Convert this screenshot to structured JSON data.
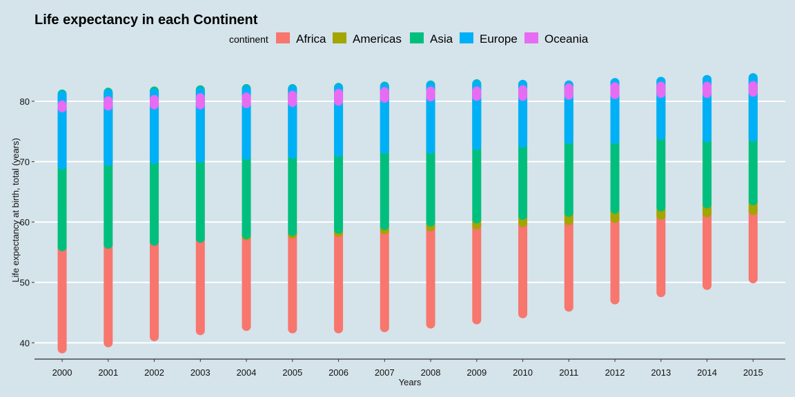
{
  "chart_data": {
    "type": "scatter",
    "title": "Life expectancy in each Continent",
    "xlabel": "Years",
    "ylabel": "Life expectancy at birth, total (years)",
    "xlim": [
      1999.4,
      2015.7
    ],
    "ylim": [
      37.3,
      86.5
    ],
    "x_ticks": [
      2000,
      2001,
      2002,
      2003,
      2004,
      2005,
      2006,
      2007,
      2008,
      2009,
      2010,
      2011,
      2012,
      2013,
      2014,
      2015
    ],
    "y_ticks": [
      40,
      50,
      60,
      70,
      80
    ],
    "grid": "horizontal",
    "legend": {
      "title": "continent",
      "position": "top"
    },
    "series": [
      {
        "name": "Africa",
        "color": "#f8766d",
        "ranges": [
          [
            39.0,
            55.9
          ],
          [
            40.0,
            56.3
          ],
          [
            41.0,
            56.8
          ],
          [
            42.0,
            57.3
          ],
          [
            42.7,
            57.7
          ],
          [
            42.3,
            58.0
          ],
          [
            42.3,
            58.3
          ],
          [
            42.5,
            58.7
          ],
          [
            43.1,
            59.2
          ],
          [
            43.8,
            59.5
          ],
          [
            44.8,
            59.9
          ],
          [
            45.9,
            60.2
          ],
          [
            47.1,
            60.6
          ],
          [
            48.3,
            61.1
          ],
          [
            49.5,
            61.5
          ],
          [
            50.6,
            61.9
          ]
        ]
      },
      {
        "name": "Americas",
        "color": "#a3a500",
        "ranges": [
          [
            null,
            null
          ],
          [
            null,
            null
          ],
          [
            null,
            null
          ],
          [
            null,
            null
          ],
          [
            57.7,
            57.9
          ],
          [
            58.0,
            58.4
          ],
          [
            58.3,
            58.8
          ],
          [
            58.7,
            59.4
          ],
          [
            59.2,
            60.0
          ],
          [
            59.5,
            60.5
          ],
          [
            59.9,
            61.1
          ],
          [
            60.2,
            61.6
          ],
          [
            60.6,
            62.1
          ],
          [
            61.1,
            62.5
          ],
          [
            61.5,
            63.0
          ],
          [
            61.9,
            63.5
          ]
        ]
      },
      {
        "name": "Asia",
        "color": "#00bf7d",
        "ranges": [
          [
            55.9,
            81.2
          ],
          [
            56.3,
            81.5
          ],
          [
            56.8,
            81.7
          ],
          [
            57.3,
            81.9
          ],
          [
            57.9,
            82.1
          ],
          [
            58.4,
            82.1
          ],
          [
            58.8,
            82.3
          ],
          [
            59.4,
            82.5
          ],
          [
            60.0,
            82.7
          ],
          [
            60.5,
            82.9
          ],
          [
            61.1,
            82.8
          ],
          [
            61.6,
            82.7
          ],
          [
            62.1,
            83.1
          ],
          [
            62.5,
            83.3
          ],
          [
            63.0,
            83.6
          ],
          [
            63.5,
            83.9
          ]
        ]
      },
      {
        "name": "Europe",
        "color": "#00b0f6",
        "ranges": [
          [
            69.4,
            81.0
          ],
          [
            70.0,
            81.3
          ],
          [
            70.3,
            81.4
          ],
          [
            70.5,
            81.6
          ],
          [
            71.0,
            81.9
          ],
          [
            71.2,
            82.0
          ],
          [
            71.5,
            82.2
          ],
          [
            72.0,
            82.4
          ],
          [
            72.0,
            82.6
          ],
          [
            72.6,
            82.8
          ],
          [
            73.0,
            82.8
          ],
          [
            73.6,
            82.7
          ],
          [
            73.6,
            83.1
          ],
          [
            74.3,
            83.3
          ],
          [
            73.9,
            83.6
          ],
          [
            74.0,
            83.9
          ]
        ]
      },
      {
        "name": "Oceania",
        "color": "#e76bf3",
        "ranges": [
          [
            78.9,
            79.4
          ],
          [
            79.2,
            80.1
          ],
          [
            79.4,
            80.3
          ],
          [
            79.4,
            80.6
          ],
          [
            79.6,
            80.7
          ],
          [
            79.8,
            81.0
          ],
          [
            80.0,
            81.3
          ],
          [
            80.5,
            81.6
          ],
          [
            80.7,
            81.7
          ],
          [
            80.8,
            81.7
          ],
          [
            80.8,
            81.9
          ],
          [
            81.0,
            82.2
          ],
          [
            81.1,
            82.4
          ],
          [
            81.3,
            82.5
          ],
          [
            81.3,
            82.5
          ],
          [
            81.5,
            82.6
          ]
        ]
      }
    ]
  }
}
